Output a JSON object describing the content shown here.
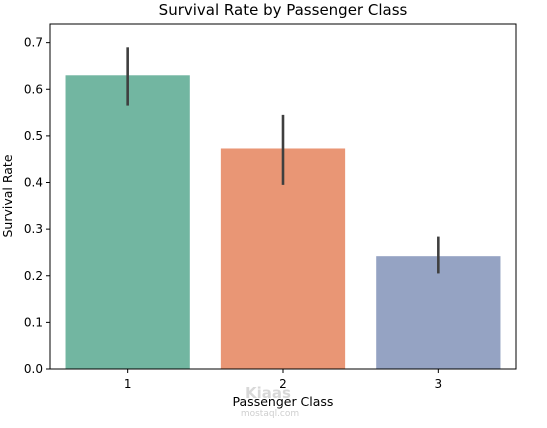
{
  "chart_data": {
    "type": "bar",
    "title": "Survival Rate by Passenger Class",
    "xlabel": "Passenger Class",
    "ylabel": "Survival Rate",
    "categories": [
      "1",
      "2",
      "3"
    ],
    "values": [
      0.63,
      0.473,
      0.242
    ],
    "error_bars": [
      [
        0.565,
        0.69
      ],
      [
        0.395,
        0.545
      ],
      [
        0.205,
        0.284
      ]
    ],
    "ylim": [
      0,
      0.74
    ],
    "yticks": [
      0.0,
      0.1,
      0.2,
      0.3,
      0.4,
      0.5,
      0.6,
      0.7
    ],
    "ytick_labels": [
      "0.0",
      "0.1",
      "0.2",
      "0.3",
      "0.4",
      "0.5",
      "0.6",
      "0.7"
    ],
    "colors": [
      "#72b6a1",
      "#e99675",
      "#95a3c3"
    ],
    "errorbar_color": "#3f3f3f",
    "grid": false,
    "legend": "none"
  },
  "watermark": {
    "brand": "Kiaas",
    "domain": "mostaql.com"
  }
}
